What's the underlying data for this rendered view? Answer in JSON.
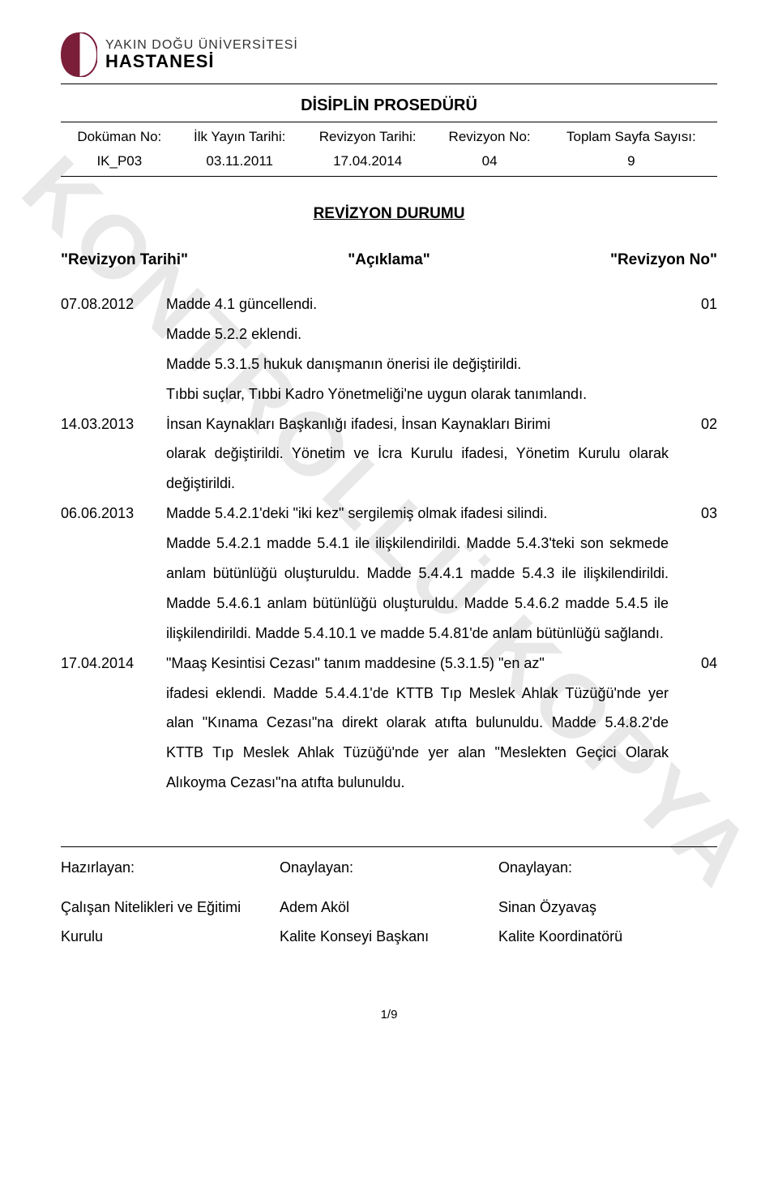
{
  "watermark": "KONTROLLÜ KOPYA",
  "logo": {
    "line1": "YAKIN DOĞU ÜNİVERSİTESİ",
    "line2": "HASTANESİ",
    "shape_color": "#7b1e3a"
  },
  "doc_title": "DİSİPLİN PROSEDÜRÜ",
  "meta": {
    "headers": [
      "Doküman No:",
      "İlk Yayın Tarihi:",
      "Revizyon Tarihi:",
      "Revizyon No:",
      "Toplam Sayfa Sayısı:"
    ],
    "values": [
      "IK_P03",
      "03.11.2011",
      "17.04.2014",
      "04",
      "9"
    ]
  },
  "section_heading": "REVİZYON DURUMU",
  "rev_table_headers": {
    "date": "\"Revizyon Tarihi\"",
    "desc": "\"Açıklama\"",
    "num": "\"Revizyon No\""
  },
  "revisions": [
    {
      "date": "07.08.2012",
      "num": "01",
      "desc": "Madde 4.1 güncellendi.",
      "cont": [
        "Madde 5.2.2 eklendi.",
        "Madde 5.3.1.5 hukuk danışmanın önerisi ile değiştirildi.",
        "Tıbbi suçlar, Tıbbi Kadro Yönetmeliği'ne uygun olarak tanımlandı."
      ]
    },
    {
      "date": "14.03.2013",
      "num": "02",
      "desc": "İnsan Kaynakları Başkanlığı ifadesi, İnsan Kaynakları Birimi",
      "cont": [
        "olarak değiştirildi. Yönetim ve İcra Kurulu ifadesi, Yönetim Kurulu olarak değiştirildi."
      ]
    },
    {
      "date": "06.06.2013",
      "num": "03",
      "desc": "Madde 5.4.2.1'deki \"iki kez\" sergilemiş olmak ifadesi silindi.",
      "cont": [
        "Madde 5.4.2.1 madde 5.4.1 ile ilişkilendirildi. Madde 5.4.3'teki son sekmede anlam bütünlüğü oluşturuldu. Madde 5.4.4.1 madde 5.4.3 ile ilişkilendirildi. Madde 5.4.6.1 anlam bütünlüğü oluşturuldu. Madde 5.4.6.2 madde 5.4.5 ile ilişkilendirildi. Madde 5.4.10.1 ve madde 5.4.81'de anlam bütünlüğü sağlandı."
      ]
    },
    {
      "date": "17.04.2014",
      "num": "04",
      "desc": "\"Maaş Kesintisi Cezası\" tanım maddesine (5.3.1.5) \"en az\"",
      "cont": [
        "ifadesi eklendi. Madde 5.4.4.1'de KTTB Tıp Meslek Ahlak Tüzüğü'nde yer alan \"Kınama Cezası\"na direkt olarak atıfta bulunuldu. Madde 5.4.8.2'de KTTB Tıp Meslek Ahlak Tüzüğü'nde yer alan \"Meslekten Geçici Olarak Alıkoyma Cezası\"na atıfta bulunuldu."
      ]
    }
  ],
  "signatures": {
    "header": [
      "Hazırlayan:",
      "Onaylayan:",
      "Onaylayan:"
    ],
    "body": [
      [
        "Çalışan Nitelikleri ve Eğitimi",
        "Kurulu"
      ],
      [
        "Adem Aköl",
        "Kalite Konseyi Başkanı"
      ],
      [
        "Sinan Özyavaş",
        "Kalite Koordinatörü"
      ]
    ]
  },
  "page_number": "1/9"
}
